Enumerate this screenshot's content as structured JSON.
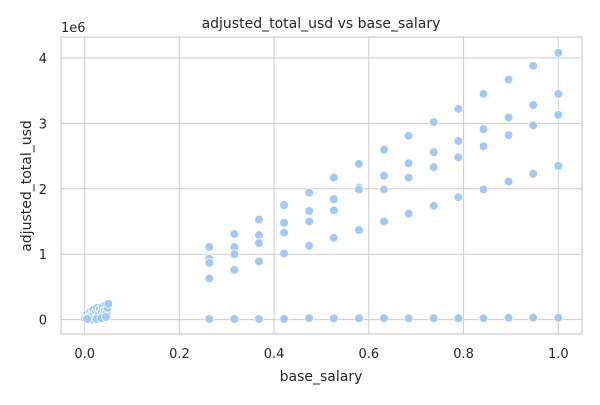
{
  "chart_data": {
    "type": "scatter",
    "title": "adjusted_total_usd vs base_salary",
    "xlabel": "base_salary",
    "ylabel": "adjusted_total_usd",
    "offset_text": "1e6",
    "xlim": [
      -0.05,
      1.05
    ],
    "ylim": [
      -0.22,
      4.32
    ],
    "xticks": [
      {
        "value": 0.0,
        "label": "0.0"
      },
      {
        "value": 0.2,
        "label": "0.2"
      },
      {
        "value": 0.4,
        "label": "0.4"
      },
      {
        "value": 0.6,
        "label": "0.6"
      },
      {
        "value": 0.8,
        "label": "0.8"
      },
      {
        "value": 1.0,
        "label": "1.0"
      }
    ],
    "yticks": [
      {
        "value": 0,
        "label": "0"
      },
      {
        "value": 1,
        "label": "1"
      },
      {
        "value": 2,
        "label": "2"
      },
      {
        "value": 3,
        "label": "3"
      },
      {
        "value": 4,
        "label": "4"
      }
    ],
    "grid": true,
    "color": "#a1c9f4",
    "series": [
      {
        "points": [
          [
            0.0,
            0.02
          ],
          [
            0.003,
            0.05
          ],
          [
            0.006,
            0.09
          ],
          [
            0.008,
            0.03
          ],
          [
            0.01,
            0.07
          ],
          [
            0.012,
            0.12
          ],
          [
            0.014,
            0.05
          ],
          [
            0.016,
            0.1
          ],
          [
            0.018,
            0.15
          ],
          [
            0.02,
            0.08
          ],
          [
            0.022,
            0.02
          ],
          [
            0.024,
            0.13
          ],
          [
            0.026,
            0.18
          ],
          [
            0.028,
            0.06
          ],
          [
            0.03,
            0.1
          ],
          [
            0.032,
            0.16
          ],
          [
            0.034,
            0.03
          ],
          [
            0.036,
            0.12
          ],
          [
            0.038,
            0.2
          ],
          [
            0.04,
            0.08
          ],
          [
            0.042,
            0.15
          ],
          [
            0.044,
            0.22
          ],
          [
            0.046,
            0.1
          ],
          [
            0.048,
            0.18
          ],
          [
            0.05,
            0.24
          ],
          [
            0.015,
            0.0
          ],
          [
            0.025,
            0.01
          ],
          [
            0.035,
            0.02
          ],
          [
            0.045,
            0.04
          ],
          [
            0.005,
            0.01
          ],
          [
            0.263,
            1.11
          ],
          [
            0.263,
            0.93
          ],
          [
            0.263,
            0.87
          ],
          [
            0.263,
            0.63
          ],
          [
            0.263,
            0.01
          ],
          [
            0.316,
            1.31
          ],
          [
            0.316,
            1.11
          ],
          [
            0.316,
            1.0
          ],
          [
            0.316,
            0.76
          ],
          [
            0.316,
            0.01
          ],
          [
            0.368,
            1.53
          ],
          [
            0.368,
            1.29
          ],
          [
            0.368,
            1.17
          ],
          [
            0.368,
            0.89
          ],
          [
            0.368,
            0.01
          ],
          [
            0.421,
            1.75
          ],
          [
            0.421,
            1.48
          ],
          [
            0.421,
            1.33
          ],
          [
            0.421,
            1.01
          ],
          [
            0.421,
            0.01
          ],
          [
            0.474,
            1.94
          ],
          [
            0.474,
            1.66
          ],
          [
            0.474,
            1.5
          ],
          [
            0.474,
            1.13
          ],
          [
            0.474,
            0.02
          ],
          [
            0.526,
            2.17
          ],
          [
            0.526,
            1.84
          ],
          [
            0.526,
            1.67
          ],
          [
            0.526,
            1.25
          ],
          [
            0.526,
            0.02
          ],
          [
            0.579,
            2.38
          ],
          [
            0.579,
            2.02
          ],
          [
            0.579,
            1.99
          ],
          [
            0.579,
            1.37
          ],
          [
            0.579,
            0.02
          ],
          [
            0.632,
            2.6
          ],
          [
            0.632,
            2.2
          ],
          [
            0.632,
            1.99
          ],
          [
            0.632,
            1.5
          ],
          [
            0.632,
            0.02
          ],
          [
            0.684,
            2.81
          ],
          [
            0.684,
            2.39
          ],
          [
            0.684,
            2.17
          ],
          [
            0.684,
            1.62
          ],
          [
            0.684,
            0.02
          ],
          [
            0.737,
            3.02
          ],
          [
            0.737,
            2.56
          ],
          [
            0.737,
            2.33
          ],
          [
            0.737,
            1.74
          ],
          [
            0.737,
            0.02
          ],
          [
            0.789,
            3.22
          ],
          [
            0.789,
            2.73
          ],
          [
            0.789,
            2.48
          ],
          [
            0.789,
            1.87
          ],
          [
            0.789,
            0.02
          ],
          [
            0.842,
            3.45
          ],
          [
            0.842,
            2.91
          ],
          [
            0.842,
            2.65
          ],
          [
            0.842,
            1.99
          ],
          [
            0.842,
            0.02
          ],
          [
            0.895,
            3.67
          ],
          [
            0.895,
            3.09
          ],
          [
            0.895,
            2.82
          ],
          [
            0.895,
            2.11
          ],
          [
            0.895,
            0.03
          ],
          [
            0.947,
            3.88
          ],
          [
            0.947,
            3.28
          ],
          [
            0.947,
            2.97
          ],
          [
            0.947,
            2.23
          ],
          [
            0.947,
            0.03
          ],
          [
            1.0,
            4.08
          ],
          [
            1.0,
            3.45
          ],
          [
            1.0,
            3.13
          ],
          [
            1.0,
            2.35
          ],
          [
            1.0,
            0.03
          ]
        ]
      }
    ]
  }
}
